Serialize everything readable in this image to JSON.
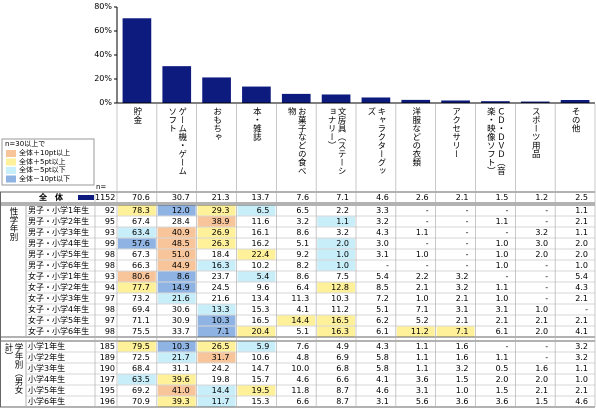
{
  "chart_data": {
    "type": "bar",
    "categories": [
      "貯金",
      "ゲーム機・ゲームソフト",
      "おもちゃ",
      "本・雑誌",
      "お菓子などの食べ物",
      "文房具（ステーショナリー）",
      "キャラクターグッズ",
      "洋服などの衣類",
      "アクセサリー",
      "ＣＤ・ＤＶＤ（音楽・映像ソフト）",
      "スポーツ用品",
      "その他"
    ],
    "values": [
      70.6,
      30.7,
      21.3,
      13.7,
      7.6,
      7.1,
      4.6,
      2.6,
      2.1,
      1.5,
      1.2,
      2.5
    ],
    "color": "#0d1a7e",
    "ylim": [
      0,
      80
    ],
    "yticks": [
      {
        "value": 0,
        "label": "0%"
      },
      {
        "value": 20,
        "label": "20%"
      },
      {
        "value": 40,
        "label": "40%"
      },
      {
        "value": 60,
        "label": "60%"
      },
      {
        "value": 80,
        "label": "80%"
      }
    ],
    "grid": false
  },
  "legend": {
    "title": "n=30以上で",
    "items": [
      {
        "label": "全体＋10pt以上",
        "color": "#f8c49a",
        "min": 10
      },
      {
        "label": "全体＋5pt以上",
        "color": "#fff09a",
        "min": 5
      },
      {
        "label": "全体－5pt以下",
        "color": "#c8eefa",
        "max": -5
      },
      {
        "label": "全体－10pt以下",
        "color": "#8fb4e3",
        "max": -10
      }
    ]
  },
  "table": {
    "n_header": "n=",
    "total": {
      "label": "全　体",
      "n": 1152
    },
    "groups": [
      {
        "label": "性学年別",
        "rows": [
          {
            "label": "男子・小学1年生",
            "n": 92,
            "cells": [
              "78.3",
              "12.0",
              "29.3",
              "6.5",
              "6.5",
              "2.2",
              "3.3",
              "-",
              "-",
              "-",
              "-",
              "1.1"
            ]
          },
          {
            "label": "男子・小学2年生",
            "n": 95,
            "cells": [
              "67.4",
              "28.4",
              "38.9",
              "11.6",
              "3.2",
              "1.1",
              "3.2",
              "-",
              "-",
              "1.1",
              "-",
              "2.1"
            ]
          },
          {
            "label": "男子・小学3年生",
            "n": 93,
            "cells": [
              "63.4",
              "40.9",
              "26.9",
              "16.1",
              "8.6",
              "3.2",
              "4.3",
              "1.1",
              "-",
              "-",
              "3.2",
              "1.1"
            ]
          },
          {
            "label": "男子・小学4年生",
            "n": 99,
            "cells": [
              "57.6",
              "48.5",
              "26.3",
              "16.2",
              "5.1",
              "2.0",
              "3.0",
              "-",
              "-",
              "1.0",
              "3.0",
              "2.0"
            ]
          },
          {
            "label": "男子・小学5年生",
            "n": 98,
            "cells": [
              "67.3",
              "51.0",
              "18.4",
              "22.4",
              "9.2",
              "1.0",
              "3.1",
              "1.0",
              "-",
              "1.0",
              "2.0",
              "2.0"
            ]
          },
          {
            "label": "男子・小学6年生",
            "n": 98,
            "cells": [
              "66.3",
              "44.9",
              "16.3",
              "10.2",
              "8.2",
              "1.0",
              "-",
              "-",
              "-",
              "1.0",
              "-",
              "1.0"
            ]
          },
          {
            "label": "女子・小学1年生",
            "n": 93,
            "cells": [
              "80.6",
              "8.6",
              "23.7",
              "5.4",
              "8.6",
              "7.5",
              "5.4",
              "2.2",
              "3.2",
              "-",
              "-",
              "5.4"
            ]
          },
          {
            "label": "女子・小学2年生",
            "n": 94,
            "cells": [
              "77.7",
              "14.9",
              "24.5",
              "9.6",
              "6.4",
              "12.8",
              "8.5",
              "2.1",
              "3.2",
              "1.1",
              "-",
              "4.3"
            ]
          },
          {
            "label": "女子・小学3年生",
            "n": 97,
            "cells": [
              "73.2",
              "21.6",
              "21.6",
              "13.4",
              "11.3",
              "10.3",
              "7.2",
              "1.0",
              "2.1",
              "1.0",
              "-",
              "2.1"
            ]
          },
          {
            "label": "女子・小学4年生",
            "n": 98,
            "cells": [
              "69.4",
              "30.6",
              "13.3",
              "15.3",
              "4.1",
              "11.2",
              "5.1",
              "7.1",
              "3.1",
              "3.1",
              "1.0",
              "-"
            ]
          },
          {
            "label": "女子・小学5年生",
            "n": 97,
            "cells": [
              "71.1",
              "30.9",
              "10.3",
              "16.5",
              "14.4",
              "16.5",
              "6.2",
              "5.2",
              "2.1",
              "2.1",
              "2.1",
              "2.1"
            ]
          },
          {
            "label": "女子・小学6年生",
            "n": 98,
            "cells": [
              "75.5",
              "33.7",
              "7.1",
              "20.4",
              "5.1",
              "16.3",
              "6.1",
              "11.2",
              "7.1",
              "6.1",
              "2.0",
              "4.1"
            ]
          }
        ]
      },
      {
        "label": "学年別（男女計）",
        "rows": [
          {
            "label": "小学1年生",
            "n": 185,
            "cells": [
              "79.5",
              "10.3",
              "26.5",
              "5.9",
              "7.6",
              "4.9",
              "4.3",
              "1.1",
              "1.6",
              "-",
              "-",
              "3.2"
            ]
          },
          {
            "label": "小学2年生",
            "n": 189,
            "cells": [
              "72.5",
              "21.7",
              "31.7",
              "10.6",
              "4.8",
              "6.9",
              "5.8",
              "1.1",
              "1.6",
              "1.1",
              "-",
              "3.2"
            ]
          },
          {
            "label": "小学3年生",
            "n": 190,
            "cells": [
              "68.4",
              "31.1",
              "24.2",
              "14.7",
              "10.0",
              "6.8",
              "5.8",
              "1.1",
              "3.2",
              "0.5",
              "1.6",
              "1.1"
            ]
          },
          {
            "label": "小学4年生",
            "n": 197,
            "cells": [
              "63.5",
              "39.6",
              "19.8",
              "15.7",
              "4.6",
              "6.6",
              "4.1",
              "3.6",
              "1.5",
              "2.0",
              "2.0",
              "1.0"
            ]
          },
          {
            "label": "小学5年生",
            "n": 195,
            "cells": [
              "69.2",
              "41.0",
              "14.4",
              "19.5",
              "11.8",
              "8.7",
              "4.6",
              "3.1",
              "1.0",
              "1.5",
              "2.1",
              "2.1"
            ]
          },
          {
            "label": "小学6年生",
            "n": 196,
            "cells": [
              "70.9",
              "39.3",
              "11.7",
              "15.3",
              "6.6",
              "8.7",
              "3.1",
              "5.6",
              "3.6",
              "3.6",
              "1.5",
              "4.6"
            ]
          }
        ]
      }
    ]
  }
}
